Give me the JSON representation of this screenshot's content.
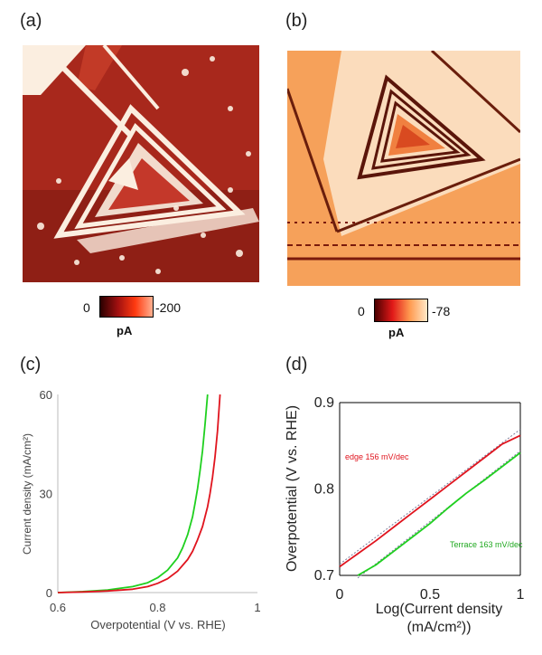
{
  "panels": {
    "a": "(a)",
    "b": "(b)",
    "c": "(c)",
    "d": "(d)"
  },
  "maps": {
    "a": {
      "cbar_min": "0",
      "cbar_max": "-200",
      "unit": "pA",
      "colors": {
        "bg": "#a8281c",
        "dark": "#7e1a12",
        "light": "#fbeee0"
      }
    },
    "b": {
      "cbar_min": "0",
      "cbar_max": "-78",
      "unit": "pA",
      "colors": {
        "bg": "#f6a15a",
        "dark": "#5e1a0c",
        "light": "#fbe0c4"
      }
    }
  },
  "chart_data": [
    {
      "type": "line",
      "xlabel": "Overpotential (V vs. RHE)",
      "ylabel": "Current density (mA/cm²)",
      "xlim": [
        0.6,
        1.0
      ],
      "ylim": [
        0,
        60
      ],
      "xticks": [
        "0.6",
        "0.8",
        "1"
      ],
      "yticks": [
        "0",
        "30",
        "60"
      ],
      "series": [
        {
          "color": "#1fd01f",
          "x": [
            0.6,
            0.65,
            0.7,
            0.75,
            0.78,
            0.8,
            0.82,
            0.84,
            0.85,
            0.86,
            0.87,
            0.875,
            0.88,
            0.885,
            0.89,
            0.895,
            0.9
          ],
          "y": [
            0,
            0.3,
            0.8,
            1.8,
            3.0,
            4.5,
            6.8,
            10.5,
            13.5,
            17.5,
            23,
            27,
            31.5,
            37,
            43,
            51,
            60
          ]
        },
        {
          "color": "#e0141e",
          "x": [
            0.6,
            0.65,
            0.7,
            0.75,
            0.78,
            0.8,
            0.82,
            0.84,
            0.86,
            0.87,
            0.88,
            0.89,
            0.9,
            0.905,
            0.91,
            0.915,
            0.92,
            0.925
          ],
          "y": [
            0,
            0.2,
            0.5,
            1.0,
            1.8,
            2.8,
            4.2,
            6.5,
            10,
            12.5,
            16,
            20,
            26,
            30,
            35,
            41,
            49,
            60
          ]
        }
      ]
    },
    {
      "type": "line",
      "xlabel": "Log(Current density (mA/cm²))",
      "ylabel": "Overpotential (V vs. RHE)",
      "xlim": [
        0,
        1.0
      ],
      "ylim": [
        0.7,
        0.9
      ],
      "xticks": [
        "0",
        "0.5",
        "1"
      ],
      "yticks": [
        "0.7",
        "0.8",
        "0.9"
      ],
      "annotations": [
        "edge 156 mV/dec",
        "Terrace 163 mV/dec"
      ],
      "series": [
        {
          "name": "edge 156 mV/dec",
          "color": "#e0141e",
          "x": [
            0,
            0.1,
            0.2,
            0.3,
            0.4,
            0.5,
            0.6,
            0.7,
            0.8,
            0.9,
            1.0
          ],
          "y": [
            0.71,
            0.725,
            0.74,
            0.756,
            0.772,
            0.788,
            0.804,
            0.82,
            0.836,
            0.852,
            0.862
          ]
        },
        {
          "name": "Terrace 163 mV/dec",
          "color": "#1fd01f",
          "x": [
            0.1,
            0.2,
            0.3,
            0.4,
            0.5,
            0.6,
            0.7,
            0.8,
            0.9,
            1.0
          ],
          "y": [
            0.7,
            0.712,
            0.728,
            0.744,
            0.76,
            0.778,
            0.795,
            0.81,
            0.826,
            0.842
          ]
        }
      ],
      "fit_lines": [
        {
          "color": "#7a7a9a",
          "x": [
            0,
            1.0
          ],
          "y": [
            0.713,
            0.869
          ]
        },
        {
          "color": "#7a7a9a",
          "x": [
            0.1,
            1.0
          ],
          "y": [
            0.697,
            0.844
          ]
        }
      ]
    }
  ]
}
